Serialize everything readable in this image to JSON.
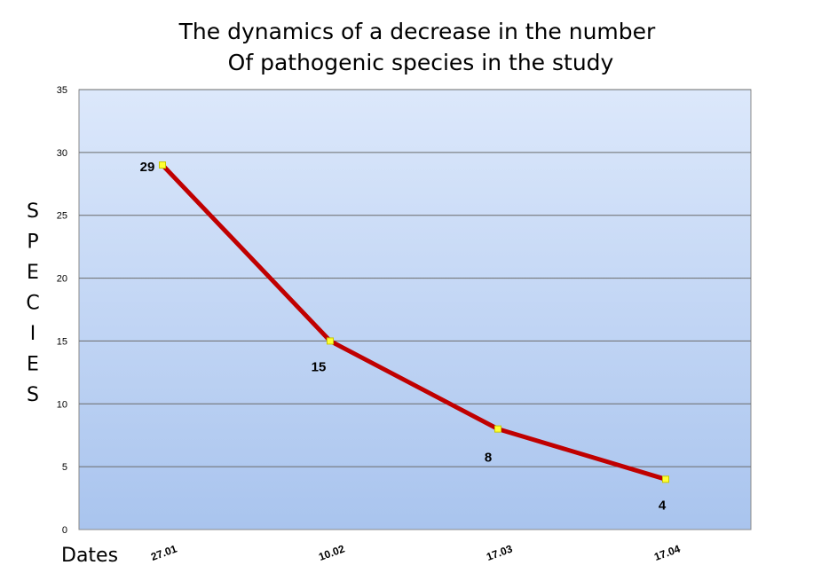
{
  "chart_data": {
    "type": "line",
    "title_lines": [
      "The dynamics of a decrease in the number",
      "Of pathogenic species in the study"
    ],
    "xlabel": "Dates",
    "ylabel": "SPECIES",
    "categories": [
      "27.01",
      "10.02",
      "17.03",
      "17.04"
    ],
    "series": [
      {
        "values": [
          29,
          15,
          8,
          4
        ]
      }
    ],
    "data_labels": [
      "29",
      "15",
      "8",
      "4"
    ],
    "ylim": [
      0,
      35
    ],
    "yticks": [
      0,
      5,
      10,
      15,
      20,
      25,
      30,
      35
    ],
    "ytick_labels": [
      "0",
      "5",
      "10",
      "15",
      "20",
      "25",
      "30",
      "35"
    ],
    "grid": true,
    "legend": "none",
    "colors": {
      "line": "#c00000",
      "marker": "#ffff33",
      "marker_stroke": "#c8c800",
      "plot_bg_top": "#dce8fb",
      "plot_bg_bottom": "#a9c4ee",
      "gridline": "#6b6b6b"
    }
  }
}
